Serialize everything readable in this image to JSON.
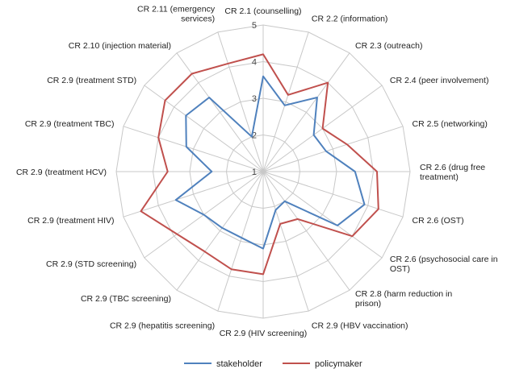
{
  "chart_data": {
    "type": "radar",
    "axes": [
      "CR 2.1 (counselling)",
      "CR 2.2 (information)",
      "CR 2.3 (outreach)",
      "CR 2.4 (peer involvement)",
      "CR 2.5 (networking)",
      "CR 2.6 (drug free\ntreatment)",
      "CR 2.6 (OST)",
      "CR 2.6 (psychosocial care in\nOST)",
      "CR 2.8 (harm reduction in\nprison)",
      "CR 2.9 (HBV vaccination)",
      "CR 2.9 (HIV screening)",
      "CR 2.9 (hepatitis screening)",
      "CR 2.9 (TBC screening)",
      "CR 2.9 (STD screening)",
      "CR 2.9 (treatment HIV)",
      "CR 2.9 (treatment HCV)",
      "CR 2.9 (treatment TBC)",
      "CR 2.9 (treatment STD)",
      "CR 2.10 (injection material)",
      "CR 2.11 (emergency\nservices)"
    ],
    "rlim": [
      1,
      5
    ],
    "ticks": [
      "1",
      "2",
      "3",
      "4",
      "5"
    ],
    "grid": true,
    "legend_position": "bottom",
    "series": [
      {
        "name": "stakeholder",
        "color": "#4f81bd",
        "values": [
          3.6,
          2.9,
          3.5,
          2.7,
          2.8,
          3.5,
          3.9,
          3.5,
          2.0,
          2.1,
          3.1,
          2.9,
          2.9,
          3.0,
          3.5,
          2.4,
          3.2,
          3.6,
          3.5,
          2.0
        ]
      },
      {
        "name": "policymaker",
        "color": "#c0504d",
        "values": [
          4.2,
          3.2,
          4.0,
          3.0,
          3.4,
          4.1,
          4.3,
          4.0,
          2.6,
          2.5,
          3.8,
          3.8,
          3.7,
          3.9,
          4.5,
          3.6,
          4.0,
          4.3,
          4.3,
          4.1
        ]
      }
    ]
  }
}
